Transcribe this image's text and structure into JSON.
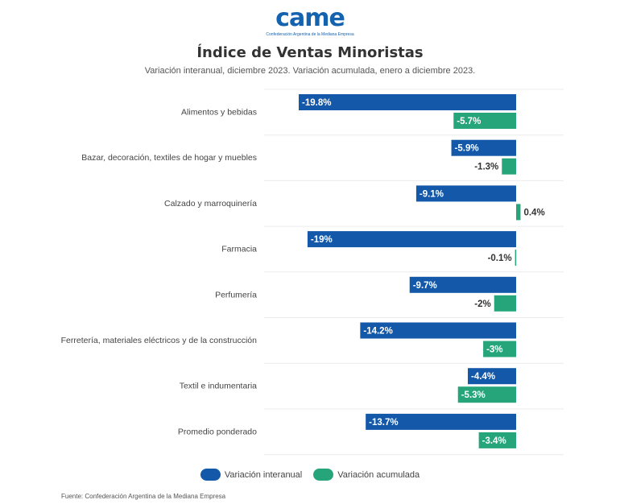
{
  "header": {
    "logo_text": "came",
    "logo_subtext": "Confederación Argentina de la Mediana Empresa"
  },
  "chart_data": {
    "type": "bar",
    "orientation": "horizontal",
    "title": "Índice de Ventas Minoristas",
    "subtitle": "Variación interanual, diciembre 2023. Variación acumulada, enero a diciembre 2023.",
    "categories": [
      "Alimentos y bebidas",
      "Bazar, decoración, textiles de hogar y muebles",
      "Calzado y marroquinería",
      "Farmacia",
      "Perfumería",
      "Ferretería, materiales eléctricos y de la construcción",
      "Textil e indumentaria",
      "Promedio ponderado"
    ],
    "series": [
      {
        "name": "Variación interanual",
        "color": "#1459a9",
        "values": [
          -19.8,
          -5.9,
          -9.1,
          -19,
          -9.7,
          -14.2,
          -4.4,
          -13.7
        ],
        "labels": [
          "-19.8%",
          "-5.9%",
          "-9.1%",
          "-19%",
          "-9.7%",
          "-14.2%",
          "-4.4%",
          "-13.7%"
        ]
      },
      {
        "name": "Variación acumulada",
        "color": "#26a57a",
        "values": [
          -5.7,
          -1.3,
          0.4,
          -0.1,
          -2,
          -3,
          -5.3,
          -3.4
        ],
        "labels": [
          "-5.7%",
          "-1.3%",
          "0.4%",
          "-0.1%",
          "-2%",
          "-3%",
          "-5.3%",
          "-3.4%"
        ]
      }
    ],
    "xlim": [
      -20,
      1
    ],
    "grid": true,
    "legend_position": "bottom-center"
  },
  "footer": {
    "source": "Fuente: Confederación Argentina de la Mediana Empresa"
  }
}
